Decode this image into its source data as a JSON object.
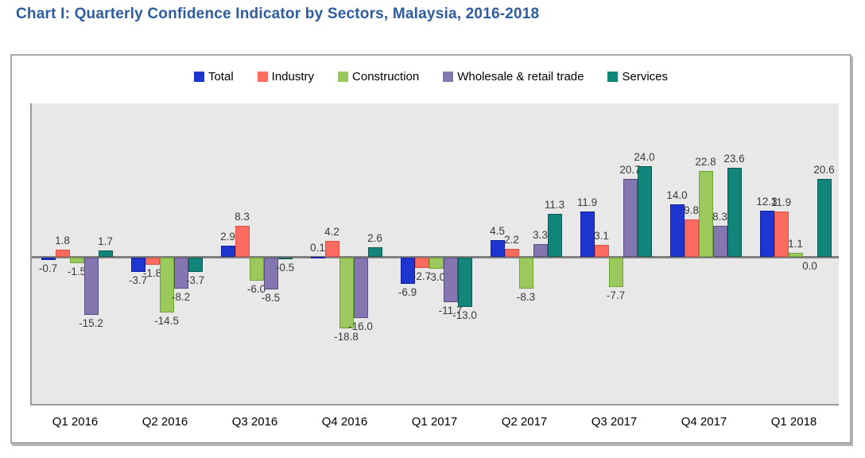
{
  "title": "Chart I: Quarterly Confidence Indicator by Sectors, Malaysia, 2016-2018",
  "chart_data": {
    "type": "bar",
    "title": "Chart I: Quarterly Confidence Indicator by Sectors, Malaysia, 2016-2018",
    "categories": [
      "Q1 2016",
      "Q2 2016",
      "Q3 2016",
      "Q4 2016",
      "Q1 2017",
      "Q2 2017",
      "Q3 2017",
      "Q4 2017",
      "Q1 2018"
    ],
    "series": [
      {
        "name": "Total",
        "color": "#1F35D0",
        "border": "#12219B",
        "values": [
          -0.7,
          -3.7,
          2.9,
          0.1,
          -6.9,
          4.5,
          11.9,
          14.0,
          12.3
        ]
      },
      {
        "name": "Industry",
        "color": "#FB6B60",
        "border": "#D94F43",
        "values": [
          1.8,
          -1.8,
          8.3,
          4.2,
          -2.7,
          2.2,
          3.1,
          9.8,
          11.9
        ]
      },
      {
        "name": "Construction",
        "color": "#9CC95D",
        "border": "#6FA433",
        "values": [
          -1.5,
          -14.5,
          -6.0,
          -18.8,
          -3.0,
          -8.3,
          -7.7,
          22.8,
          1.1
        ]
      },
      {
        "name": "Wholesale & retail trade",
        "color": "#8476B0",
        "border": "#584C7E",
        "values": [
          -15.2,
          -8.2,
          -8.5,
          -16.0,
          -11.7,
          3.3,
          20.7,
          8.3,
          0.0
        ]
      },
      {
        "name": "Services",
        "color": "#12857B",
        "border": "#0A5952",
        "values": [
          1.7,
          -3.7,
          -0.5,
          2.6,
          -13.0,
          11.3,
          24.0,
          23.6,
          20.6
        ]
      }
    ],
    "xlabel": "",
    "ylabel": "",
    "ylim": [
      -40.6,
      40.6
    ],
    "grid": false,
    "legend_position": "top",
    "value_labels": true,
    "value_label_format": "one_decimal",
    "plot_background": "#E8E8E8",
    "axis_line_color": "#7F7F7F"
  }
}
